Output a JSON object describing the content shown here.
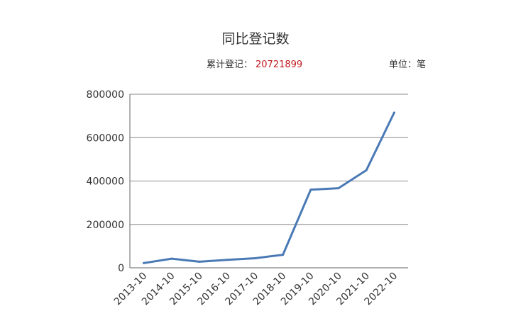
{
  "chart_data": {
    "type": "line",
    "title": "同比登记数",
    "total_label": "累计登记：",
    "total_value": "20721899",
    "unit_label": "单位：笔",
    "categories": [
      "2013-10",
      "2014-10",
      "2015-10",
      "2016-10",
      "2017-10",
      "2018-10",
      "2019-10",
      "2020-10",
      "2021-10",
      "2022-10"
    ],
    "series": [
      {
        "values": [
          22000,
          42000,
          28000,
          37000,
          44000,
          60000,
          360000,
          367000,
          450000,
          715000
        ],
        "color": "#4a7ab5"
      }
    ],
    "yticks": [
      "0",
      "200000",
      "400000",
      "600000",
      "800000"
    ],
    "ylim": [
      0,
      800000
    ],
    "grid": true,
    "xlabel": "",
    "ylabel": ""
  }
}
